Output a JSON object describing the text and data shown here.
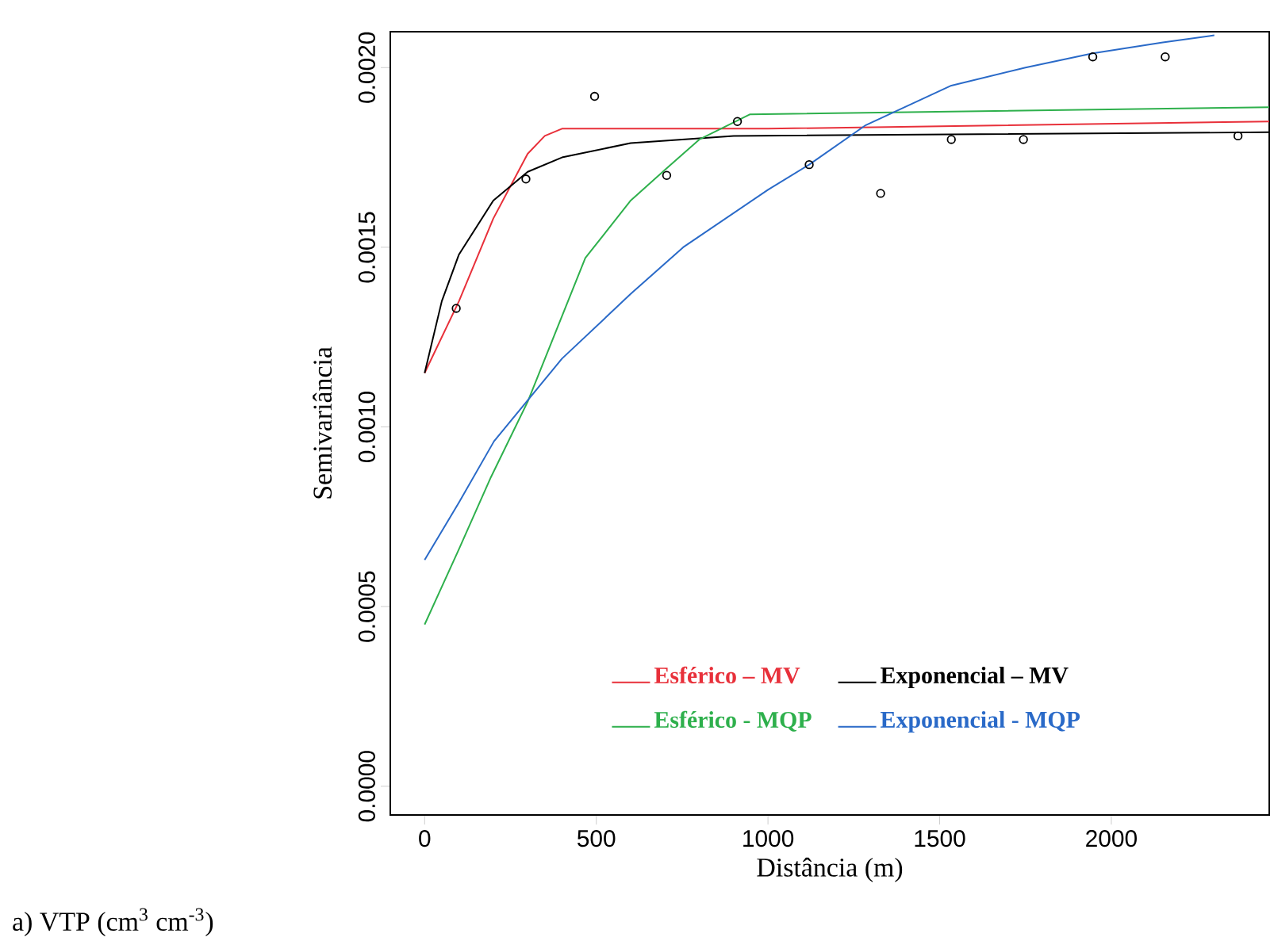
{
  "chart_data": {
    "type": "line",
    "xlabel": "Distância (m)",
    "ylabel": "Semivariância",
    "annotations": [
      "a) VTP (cm$^{3}$ cm$^{-3}$)"
    ],
    "xlim": [
      -100,
      2460
    ],
    "ylim": [
      -8e-05,
      0.0021
    ],
    "xticks": [
      0,
      500,
      1000,
      1500,
      2000
    ],
    "yticks": [
      {
        "value": 0,
        "label": "0.0000"
      },
      {
        "value": 0.0005,
        "label": "0.0005"
      },
      {
        "value": 0.001,
        "label": "0.0010"
      },
      {
        "value": 0.0015,
        "label": "0.0015"
      },
      {
        "value": 0.002,
        "label": "0.0020"
      }
    ],
    "grid": false,
    "legend": "bottom",
    "series": [
      {
        "type": "scatter",
        "marker": "circle",
        "color": "#000000",
        "x": [
          92,
          295,
          495,
          705,
          911,
          1120,
          1328,
          1534,
          1744,
          1946,
          2157,
          2369
        ],
        "values": [
          0.00133,
          0.00169,
          0.00192,
          0.0017,
          0.00185,
          0.00173,
          0.00165,
          0.0018,
          0.0018,
          0.00203,
          0.00203,
          0.00181
        ]
      },
      {
        "name": "Esférico – MV",
        "color": "#e8303a",
        "x": [
          0,
          100,
          200,
          300,
          350,
          400,
          1000,
          2460
        ],
        "values": [
          0.00115,
          0.00135,
          0.00158,
          0.00176,
          0.00181,
          0.00183,
          0.00183,
          0.00185
        ]
      },
      {
        "name": "Exponencial – MV",
        "color": "#000000",
        "x": [
          0,
          50,
          100,
          200,
          300,
          400,
          600,
          900,
          2460
        ],
        "values": [
          0.00115,
          0.00135,
          0.00148,
          0.00163,
          0.00171,
          0.00175,
          0.00179,
          0.00181,
          0.00182
        ]
      },
      {
        "name": "Esférico - MQP",
        "color": "#2eb04c",
        "x": [
          0,
          100,
          193,
          300,
          468,
          600,
          705,
          800,
          948,
          2460
        ],
        "values": [
          0.00045,
          0.00066,
          0.00086,
          0.00107,
          0.00147,
          0.00163,
          0.00172,
          0.0018,
          0.00187,
          0.00189
        ]
      },
      {
        "name": "Exponencial - MQP",
        "color": "#2a6ac8",
        "x": [
          0,
          100,
          202,
          400,
          600,
          753,
          1000,
          1120,
          1285,
          1534,
          1750,
          1946,
          2150,
          2300
        ],
        "values": [
          0.00063,
          0.00079,
          0.00096,
          0.00119,
          0.00137,
          0.0015,
          0.00166,
          0.00173,
          0.00184,
          0.00195,
          0.002,
          0.00204,
          0.00207,
          0.00209
        ]
      }
    ]
  }
}
